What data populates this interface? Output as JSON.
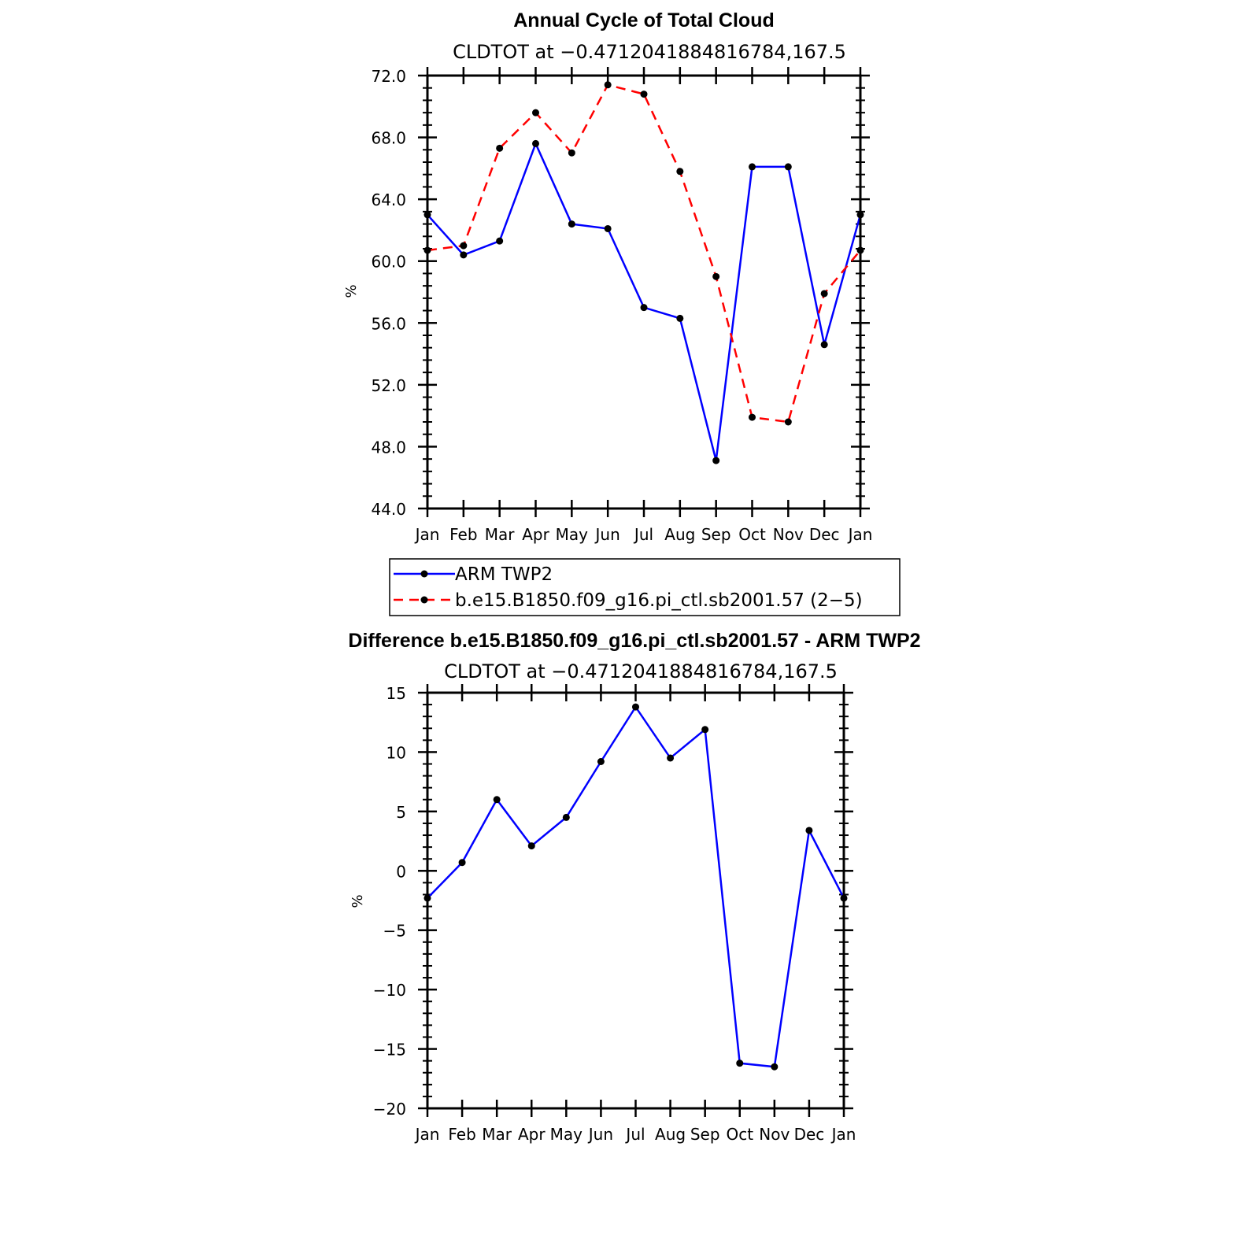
{
  "chart_data": [
    {
      "type": "line",
      "title": "Annual Cycle of Total Cloud",
      "subtitle": "CLDTOT at −0.4712041884816784,167.5",
      "ylabel": "%",
      "xlabel": "",
      "categories": [
        "Jan",
        "Feb",
        "Mar",
        "Apr",
        "May",
        "Jun",
        "Jul",
        "Aug",
        "Sep",
        "Oct",
        "Nov",
        "Dec",
        "Jan"
      ],
      "ylim": [
        44.0,
        72.0
      ],
      "yticks": [
        44.0,
        48.0,
        52.0,
        56.0,
        60.0,
        64.0,
        68.0,
        72.0
      ],
      "ytick_labels": [
        "44.0",
        "48.0",
        "52.0",
        "56.0",
        "60.0",
        "64.0",
        "68.0",
        "72.0"
      ],
      "series": [
        {
          "name": "ARM TWP2",
          "color": "#0000ff",
          "dash": "solid",
          "values": [
            63.0,
            60.4,
            61.3,
            67.6,
            62.4,
            62.1,
            57.0,
            56.3,
            47.1,
            66.1,
            66.1,
            54.6,
            63.0
          ]
        },
        {
          "name": "b.e15.B1850.f09_g16.pi_ctl.sb2001.57 (2−5)",
          "color": "#ff0000",
          "dash": "dashed",
          "values": [
            60.7,
            61.0,
            67.3,
            69.6,
            67.0,
            71.4,
            70.8,
            65.8,
            59.0,
            49.9,
            49.6,
            57.9,
            60.7
          ]
        }
      ],
      "legend": "bottom"
    },
    {
      "type": "line",
      "title": "Difference b.e15.B1850.f09_g16.pi_ctl.sb2001.57 - ARM TWP2",
      "subtitle": "CLDTOT at −0.4712041884816784,167.5",
      "ylabel": "%",
      "xlabel": "",
      "categories": [
        "Jan",
        "Feb",
        "Mar",
        "Apr",
        "May",
        "Jun",
        "Jul",
        "Aug",
        "Sep",
        "Oct",
        "Nov",
        "Dec",
        "Jan"
      ],
      "ylim": [
        -20,
        15
      ],
      "yticks": [
        -20,
        -15,
        -10,
        -5,
        0,
        5,
        10,
        15
      ],
      "ytick_labels": [
        "−20",
        "−15",
        "−10",
        "−5",
        "0",
        "5",
        "10",
        "15"
      ],
      "series": [
        {
          "color": "#0000ff",
          "dash": "solid",
          "values": [
            -2.3,
            0.7,
            6.0,
            2.1,
            4.5,
            9.2,
            13.8,
            9.5,
            11.9,
            -16.2,
            -16.5,
            3.4,
            -2.3
          ]
        }
      ]
    }
  ]
}
